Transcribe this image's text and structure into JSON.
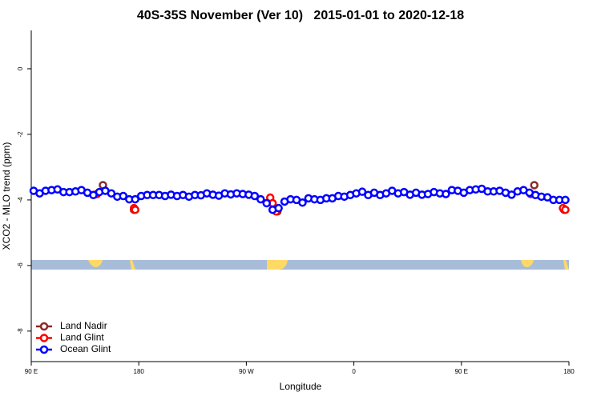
{
  "chart_data": {
    "type": "scatter",
    "title": "40S-35S November (Ver 10)   2015-01-01 to 2020-12-18",
    "x_label": "Longitude",
    "y_label": "XCO2 - MLO trend (ppm)",
    "xlim": [
      90,
      540
    ],
    "ylim": [
      -8.93,
      1.17
    ],
    "xticks": [
      {
        "value": 90,
        "label": "90 E"
      },
      {
        "value": 180,
        "label": "180"
      },
      {
        "value": 270,
        "label": "90 W"
      },
      {
        "value": 360,
        "label": "0"
      },
      {
        "value": 450,
        "label": "90 E"
      },
      {
        "value": 540,
        "label": "180"
      }
    ],
    "yticks": [
      0,
      -2,
      -4,
      -6,
      -8
    ],
    "legend": "bottom-left",
    "series": [
      {
        "name": "Land Nadir",
        "color": "#8b2a2a",
        "x": [
          150,
          176,
          296,
          511,
          536
        ],
        "values": [
          -3.55,
          -4.3,
          -4.35,
          -3.55,
          -4.3
        ]
      },
      {
        "name": "Land Glint",
        "color": "#ff0000",
        "x": [
          145,
          176,
          177,
          290,
          292,
          295,
          508,
          535,
          537
        ],
        "values": [
          -3.82,
          -4.25,
          -4.3,
          -3.93,
          -4.1,
          -4.35,
          -3.82,
          -4.25,
          -4.3
        ]
      },
      {
        "name": "Ocean Glint",
        "color": "#0000ff",
        "x": [
          92,
          97,
          102,
          107,
          112,
          117,
          122,
          127,
          132,
          137,
          142,
          147,
          152,
          157,
          162,
          167,
          172,
          177,
          182,
          187,
          192,
          197,
          202,
          207,
          212,
          217,
          222,
          227,
          232,
          237,
          242,
          247,
          252,
          257,
          262,
          267,
          272,
          277,
          282,
          287,
          292,
          297,
          302,
          307,
          312,
          317,
          322,
          327,
          332,
          337,
          342,
          347,
          352,
          357,
          362,
          367,
          372,
          377,
          382,
          387,
          392,
          397,
          402,
          407,
          412,
          417,
          422,
          427,
          432,
          437,
          442,
          447,
          452,
          457,
          462,
          467,
          472,
          477,
          482,
          487,
          492,
          497,
          502,
          507,
          512,
          517,
          522,
          527,
          532,
          537
        ],
        "values": [
          -3.72,
          -3.8,
          -3.72,
          -3.7,
          -3.68,
          -3.76,
          -3.76,
          -3.74,
          -3.7,
          -3.78,
          -3.85,
          -3.76,
          -3.72,
          -3.8,
          -3.9,
          -3.88,
          -3.98,
          -3.98,
          -3.88,
          -3.85,
          -3.85,
          -3.85,
          -3.88,
          -3.84,
          -3.88,
          -3.85,
          -3.9,
          -3.85,
          -3.86,
          -3.8,
          -3.84,
          -3.87,
          -3.8,
          -3.83,
          -3.8,
          -3.82,
          -3.84,
          -3.88,
          -3.98,
          -4.1,
          -4.3,
          -4.25,
          -4.05,
          -3.98,
          -4.0,
          -4.08,
          -3.95,
          -3.98,
          -4.0,
          -3.95,
          -3.95,
          -3.88,
          -3.9,
          -3.85,
          -3.8,
          -3.75,
          -3.85,
          -3.78,
          -3.85,
          -3.8,
          -3.72,
          -3.8,
          -3.76,
          -3.84,
          -3.78,
          -3.84,
          -3.82,
          -3.76,
          -3.8,
          -3.82,
          -3.7,
          -3.72,
          -3.78,
          -3.7,
          -3.68,
          -3.66,
          -3.74,
          -3.74,
          -3.72,
          -3.78,
          -3.84,
          -3.74,
          -3.7,
          -3.78,
          -3.85,
          -3.9,
          -3.92,
          -4.0,
          -4.0,
          -4.0
        ]
      }
    ]
  }
}
